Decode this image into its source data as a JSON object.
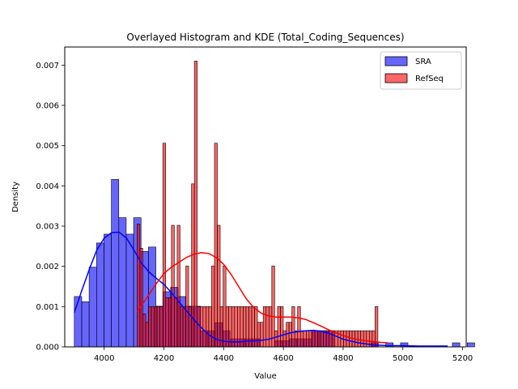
{
  "chart_data": {
    "type": "bar",
    "title": "Overlayed Histogram and KDE (Total_Coding_Sequences)",
    "xlabel": "Value",
    "ylabel": "Density",
    "xlim": [
      3868,
      5212
    ],
    "ylim": [
      0,
      0.00745
    ],
    "x_ticks": [
      4000,
      4200,
      4400,
      4600,
      4800,
      5000,
      5200
    ],
    "y_ticks": [
      0.0,
      0.001,
      0.002,
      0.003,
      0.004,
      0.005,
      0.006,
      0.007
    ],
    "y_tick_labels": [
      "0.000",
      "0.001",
      "0.002",
      "0.003",
      "0.004",
      "0.005",
      "0.006",
      "0.007"
    ],
    "legend": {
      "placement": "top-right",
      "entries": [
        "SRA",
        "RefSeq"
      ]
    },
    "series": [
      {
        "name": "SRA",
        "kind": "histogram",
        "color": "#0000ff",
        "bin_start": 3900,
        "bin_width": 24.82,
        "values": [
          0.00125,
          0.00112,
          0.00198,
          0.00258,
          0.0028,
          0.00416,
          0.00321,
          0.0028,
          0.00321,
          0.00237,
          0.00248,
          0.00101,
          0.00137,
          0.00148,
          0.00125,
          0.00101,
          0.00101,
          0.0004,
          0.0004,
          0.0006,
          0.0004,
          0.0002,
          0.0002,
          0.0002,
          0.0002,
          0,
          0,
          0.00015,
          0.00015,
          0.0002,
          0.0002,
          0.0002,
          0.0004,
          0.0004,
          0.0004,
          0,
          0,
          0,
          0,
          0,
          0.0001,
          0,
          0.0001,
          0,
          0.0001,
          0,
          0,
          0,
          0,
          0,
          0,
          0.0001,
          0,
          0.0001
        ],
        "kde": {
          "color": "#0000ff",
          "x": [
            3900,
            3925,
            3950,
            3975,
            4000,
            4025,
            4050,
            4075,
            4100,
            4125,
            4150,
            4175,
            4200,
            4225,
            4250,
            4275,
            4300,
            4325,
            4350,
            4375,
            4400,
            4425,
            4450,
            4475,
            4500,
            4525,
            4550,
            4575,
            4600,
            4625,
            4650,
            4675,
            4700,
            4725,
            4750,
            4775,
            4800,
            4850,
            4900,
            4950,
            5000,
            5050,
            5100,
            5150
          ],
          "y": [
            0.00085,
            0.0014,
            0.00192,
            0.0024,
            0.0027,
            0.00284,
            0.00285,
            0.0027,
            0.0024,
            0.00208,
            0.00186,
            0.0017,
            0.00155,
            0.00135,
            0.00112,
            0.0009,
            0.00068,
            0.00048,
            0.0003,
            0.00019,
            0.00014,
            0.00012,
            0.00012,
            0.00014,
            0.00015,
            0.00016,
            0.00019,
            0.00024,
            0.0003,
            0.00035,
            0.00038,
            0.0004,
            0.00041,
            0.00039,
            0.00034,
            0.00027,
            0.00019,
            0.0001,
            5e-05,
            3e-05,
            3e-05,
            2e-05,
            2e-05,
            2e-05
          ]
        }
      },
      {
        "name": "RefSeq",
        "kind": "histogram",
        "color": "#ff0000",
        "bin_start": 4110,
        "bin_width": 9.6,
        "values": [
          0.00305,
          0.00245,
          0.00082,
          0.00061,
          0.001,
          0.001,
          0.001,
          0.001,
          0.001,
          0.00506,
          0.00122,
          0.00122,
          0.00302,
          0.00122,
          0.00302,
          0.001,
          0.001,
          0.00201,
          0.001,
          0.00405,
          0.0071,
          0.001,
          0.001,
          0.001,
          0.001,
          0.001,
          0.00201,
          0.00506,
          0.00302,
          0.001,
          0.00201,
          0.001,
          0.001,
          0.001,
          0.001,
          0.001,
          0.001,
          0.001,
          0.001,
          0.001,
          0.001,
          0.001,
          0.00061,
          0.00061,
          0.001,
          0.001,
          0.001,
          0.00201,
          0.0004,
          0.001,
          0.001,
          0.0004,
          0.00061,
          0.00061,
          0.001,
          0.0004,
          0.001,
          0.0004,
          0.0004,
          0.0004,
          0.0004,
          0.0004,
          0.0004,
          0.0004,
          0.0004,
          0.0004,
          0.0004,
          0.0004,
          0.0004,
          0.0004,
          0.0004,
          0.0004,
          0.0004,
          0.0004,
          0.0004,
          0.0004,
          0.0004,
          0.0004,
          0.0004,
          0.0004,
          0.0004,
          0.0004,
          0.0004,
          0.001
        ],
        "kde": {
          "color": "#ff0000",
          "x": [
            4110,
            4130,
            4150,
            4175,
            4200,
            4225,
            4250,
            4275,
            4300,
            4325,
            4350,
            4375,
            4400,
            4425,
            4450,
            4475,
            4500,
            4525,
            4550,
            4575,
            4600,
            4625,
            4650,
            4675,
            4700,
            4725,
            4750,
            4775,
            4800,
            4825,
            4850,
            4875,
            4900,
            4925,
            4950
          ],
          "y": [
            0.00088,
            0.00108,
            0.0013,
            0.00158,
            0.00182,
            0.00198,
            0.0021,
            0.00222,
            0.0023,
            0.00234,
            0.00232,
            0.00222,
            0.00205,
            0.0018,
            0.0015,
            0.0012,
            0.00098,
            0.00084,
            0.00077,
            0.00074,
            0.00074,
            0.00074,
            0.00072,
            0.00068,
            0.0006,
            0.00052,
            0.00043,
            0.00035,
            0.00028,
            0.00022,
            0.00018,
            0.00015,
            0.00013,
            0.00011,
            0.0001
          ]
        }
      }
    ]
  }
}
